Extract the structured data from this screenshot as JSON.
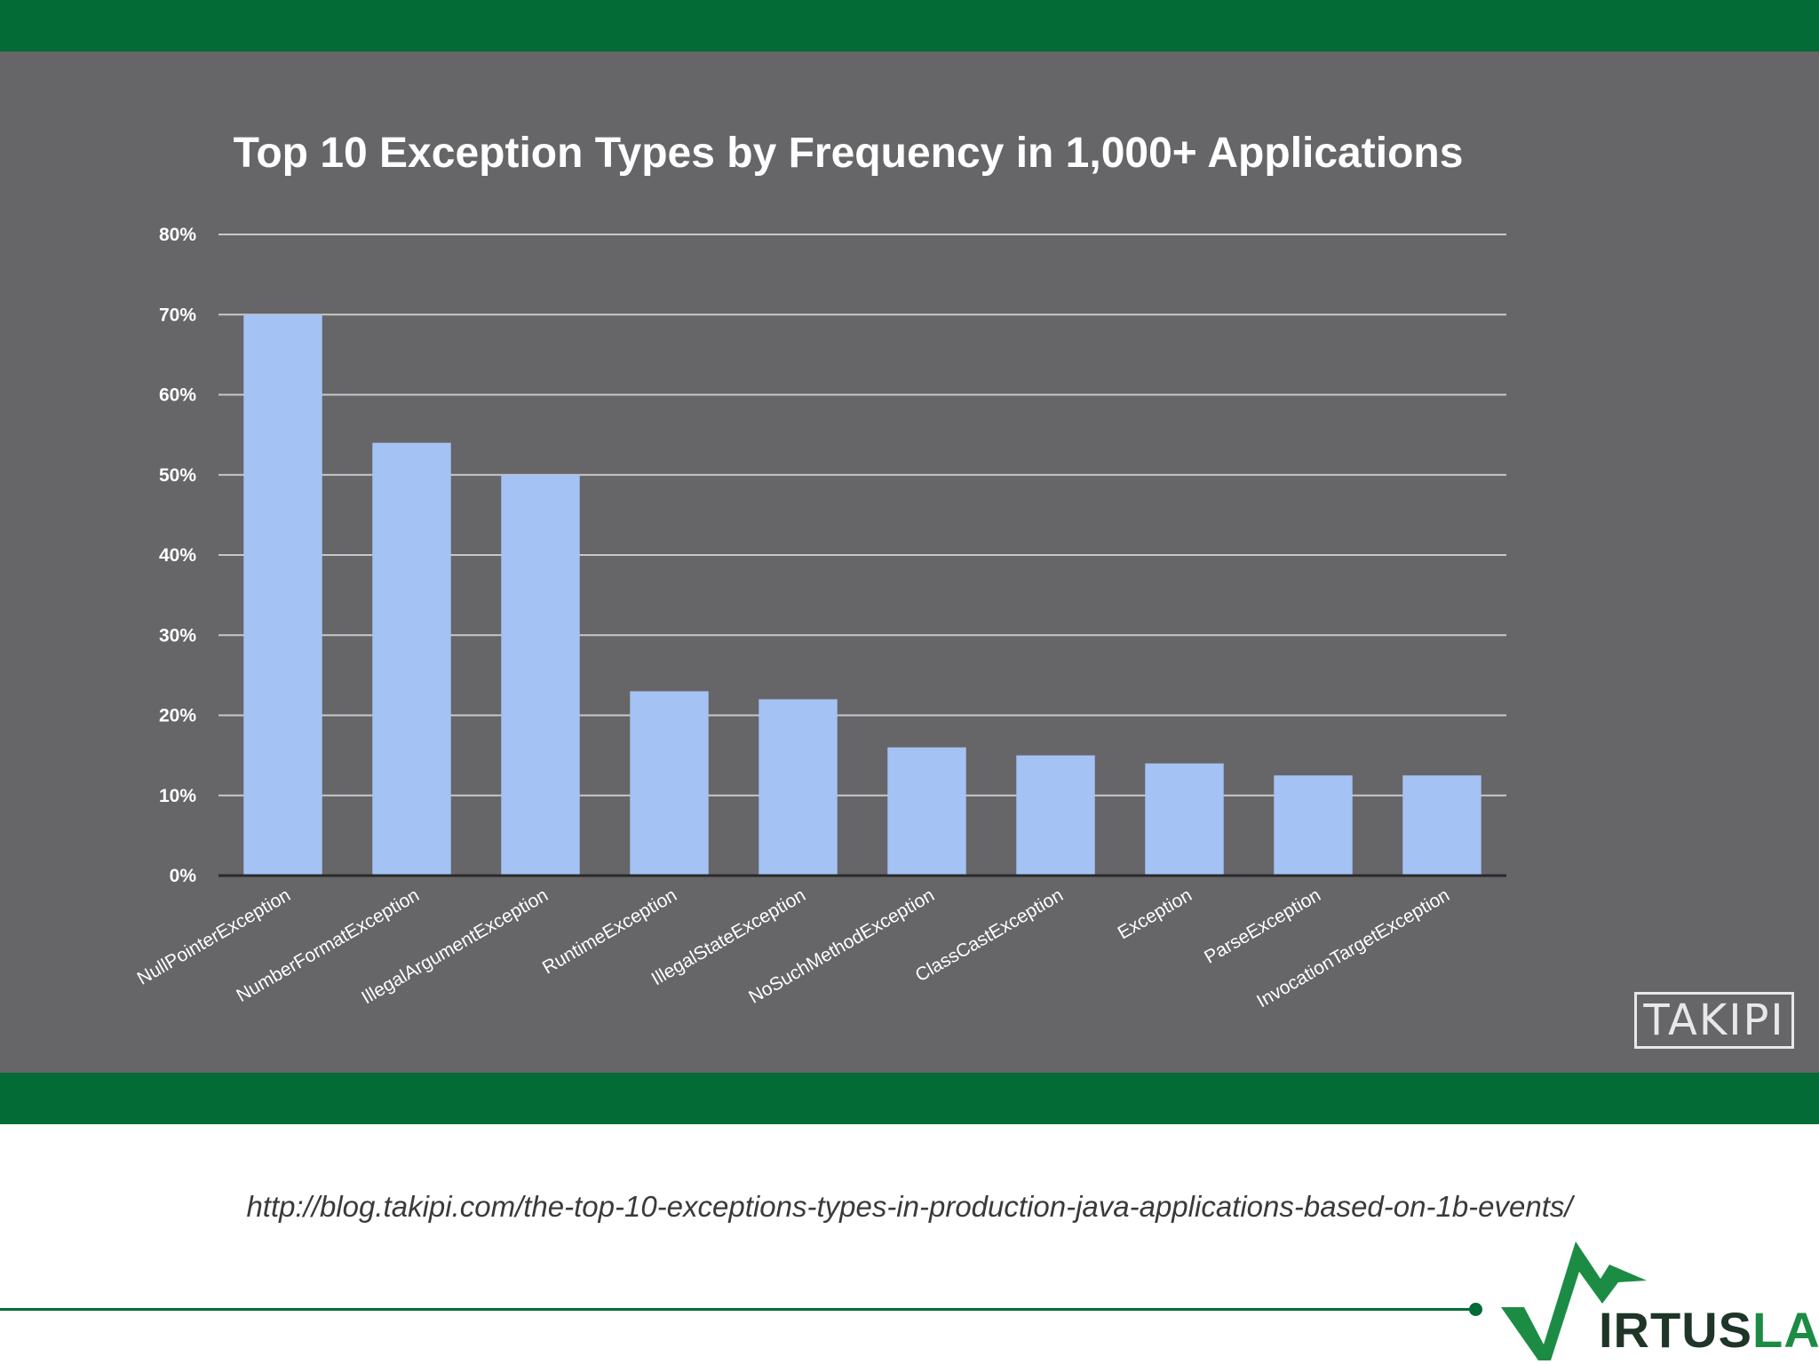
{
  "chart_data": {
    "type": "bar",
    "title": "Top 10 Exception Types by Frequency in 1,000+ Applications",
    "categories": [
      "NullPointerException",
      "NumberFormatException",
      "IllegalArgumentException",
      "RuntimeException",
      "IllegalStateException",
      "NoSuchMethodException",
      "ClassCastException",
      "Exception",
      "ParseException",
      "InvocationTargetException"
    ],
    "values": [
      70,
      54,
      50,
      23,
      22,
      16,
      15,
      14,
      12.5,
      12.5
    ],
    "ylim": [
      0,
      80
    ],
    "yticks": [
      0,
      10,
      20,
      30,
      40,
      50,
      60,
      70,
      80
    ],
    "ytick_labels": [
      "0%",
      "10%",
      "20%",
      "30%",
      "40%",
      "50%",
      "60%",
      "70%",
      "80%"
    ],
    "xlabel": "",
    "ylabel": "",
    "grid": true,
    "colors": {
      "bar": "#a4c2f4",
      "grid": "#c9c9c9",
      "background": "#666568"
    }
  },
  "watermark": "TAKIPI",
  "source_url": "http://blog.takipi.com/the-top-10-exceptions-types-in-production-java-applications-based-on-1b-events/",
  "brand": {
    "prefix": "IRTUS",
    "suffix": "LAB",
    "name": "VIRTUSLAB"
  },
  "colors": {
    "band": "#026b36",
    "panel": "#666568"
  }
}
